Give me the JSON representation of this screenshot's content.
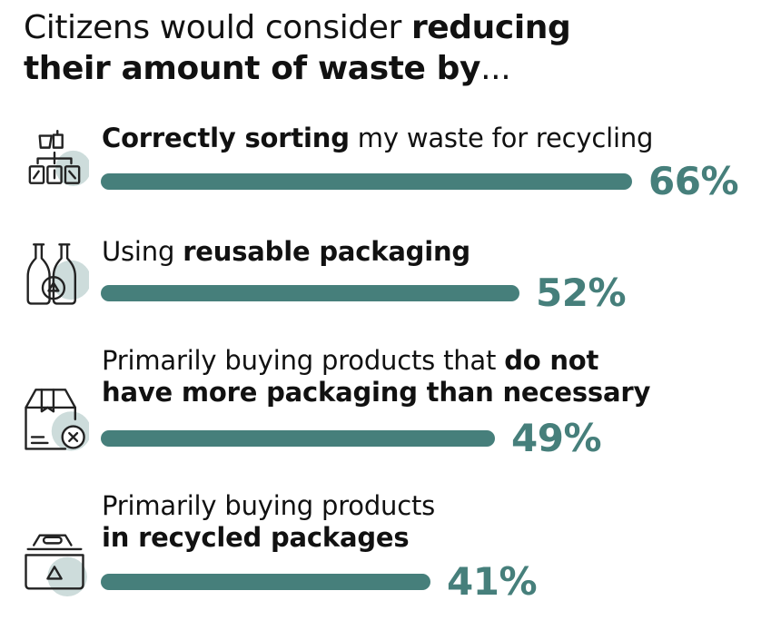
{
  "title": {
    "line1_normal": "Citizens would consider ",
    "line1_bold": "reducing",
    "line2_bold": "their amount of waste by",
    "line2_normal": "..."
  },
  "chart_data": {
    "type": "bar",
    "orientation": "horizontal",
    "categories": [
      "Correctly sorting my waste for recycling",
      "Using reusable packaging",
      "Primarily buying products that do not have more packaging than necessary",
      "Primarily buying products in recycled packages"
    ],
    "values": [
      66,
      52,
      49,
      41
    ],
    "value_labels": [
      "66%",
      "52%",
      "49%",
      "41%"
    ],
    "bar_color": "#467f7b",
    "accent_circle_color": "#cddcdb",
    "items": [
      {
        "icon": "recycling-bins-icon",
        "label_parts": [
          {
            "text": "Correctly sorting",
            "bold": true
          },
          {
            "text": " my waste for recycling",
            "bold": false
          }
        ],
        "value": 66,
        "value_label": "66%"
      },
      {
        "icon": "reusable-bottles-icon",
        "label_parts": [
          {
            "text": "Using ",
            "bold": false
          },
          {
            "text": "reusable packaging",
            "bold": true
          }
        ],
        "value": 52,
        "value_label": "52%"
      },
      {
        "icon": "package-no-excess-icon",
        "label_parts": [
          {
            "text": "Primarily buying products that ",
            "bold": false
          },
          {
            "text": "do not",
            "bold": true
          },
          {
            "text": "\n",
            "bold": false
          },
          {
            "text": "have more packaging than necessary",
            "bold": true
          }
        ],
        "value": 49,
        "value_label": "49%"
      },
      {
        "icon": "recycled-package-icon",
        "label_parts": [
          {
            "text": "Primarily buying products",
            "bold": false
          },
          {
            "text": "\n",
            "bold": false
          },
          {
            "text": "in recycled packages",
            "bold": true
          }
        ],
        "value": 41,
        "value_label": "41%"
      }
    ]
  }
}
